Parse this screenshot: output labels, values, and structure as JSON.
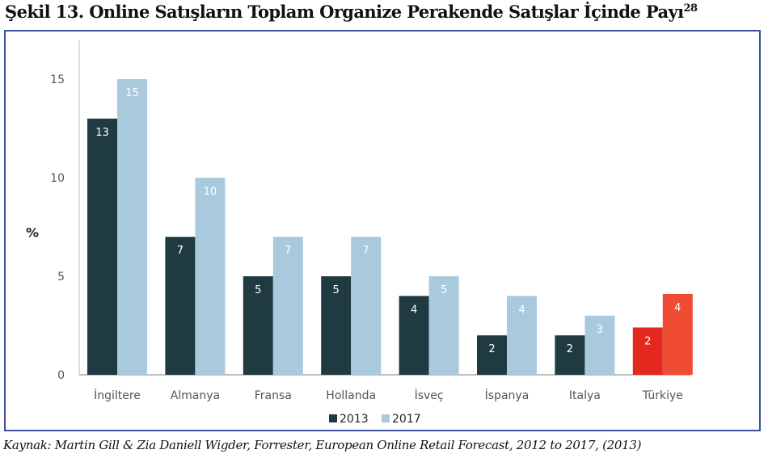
{
  "title": "Şekil 13. Online Satışların Toplam Organize Perakende Satışlar İçinde Payı",
  "title_footnote": "28",
  "source": "Kaynak: Martin Gill & Zia Daniell Wigder, Forrester, European Online Retail Forecast, 2012 to 2017, (2013)",
  "chart_data": {
    "type": "bar",
    "title": "",
    "xlabel": "",
    "ylabel": "%",
    "ylim": [
      0,
      17
    ],
    "yticks": [
      "0",
      "5",
      "10",
      "15"
    ],
    "grid": false,
    "legend": "bottom",
    "categories": [
      "İngiltere",
      "Almanya",
      "Fransa",
      "Hollanda",
      "İsveç",
      "İspanya",
      "Italya",
      "Türkiye"
    ],
    "series": [
      {
        "name": "2013",
        "color": "#1f3a40",
        "values": [
          13,
          7,
          5,
          5,
          4,
          2,
          2,
          2.4
        ],
        "labels": [
          "13",
          "7",
          "5",
          "5",
          "4",
          "2",
          "2",
          "2"
        ]
      },
      {
        "name": "2017",
        "color": "#a9c9dd",
        "values": [
          15,
          10,
          7,
          7,
          5,
          4,
          3,
          4.1
        ],
        "labels": [
          "15",
          "10",
          "7",
          "7",
          "5",
          "4",
          "3",
          "4"
        ]
      }
    ],
    "highlight": {
      "category": "Türkiye",
      "colors": [
        "#e3291d",
        "#f04b33"
      ]
    }
  }
}
